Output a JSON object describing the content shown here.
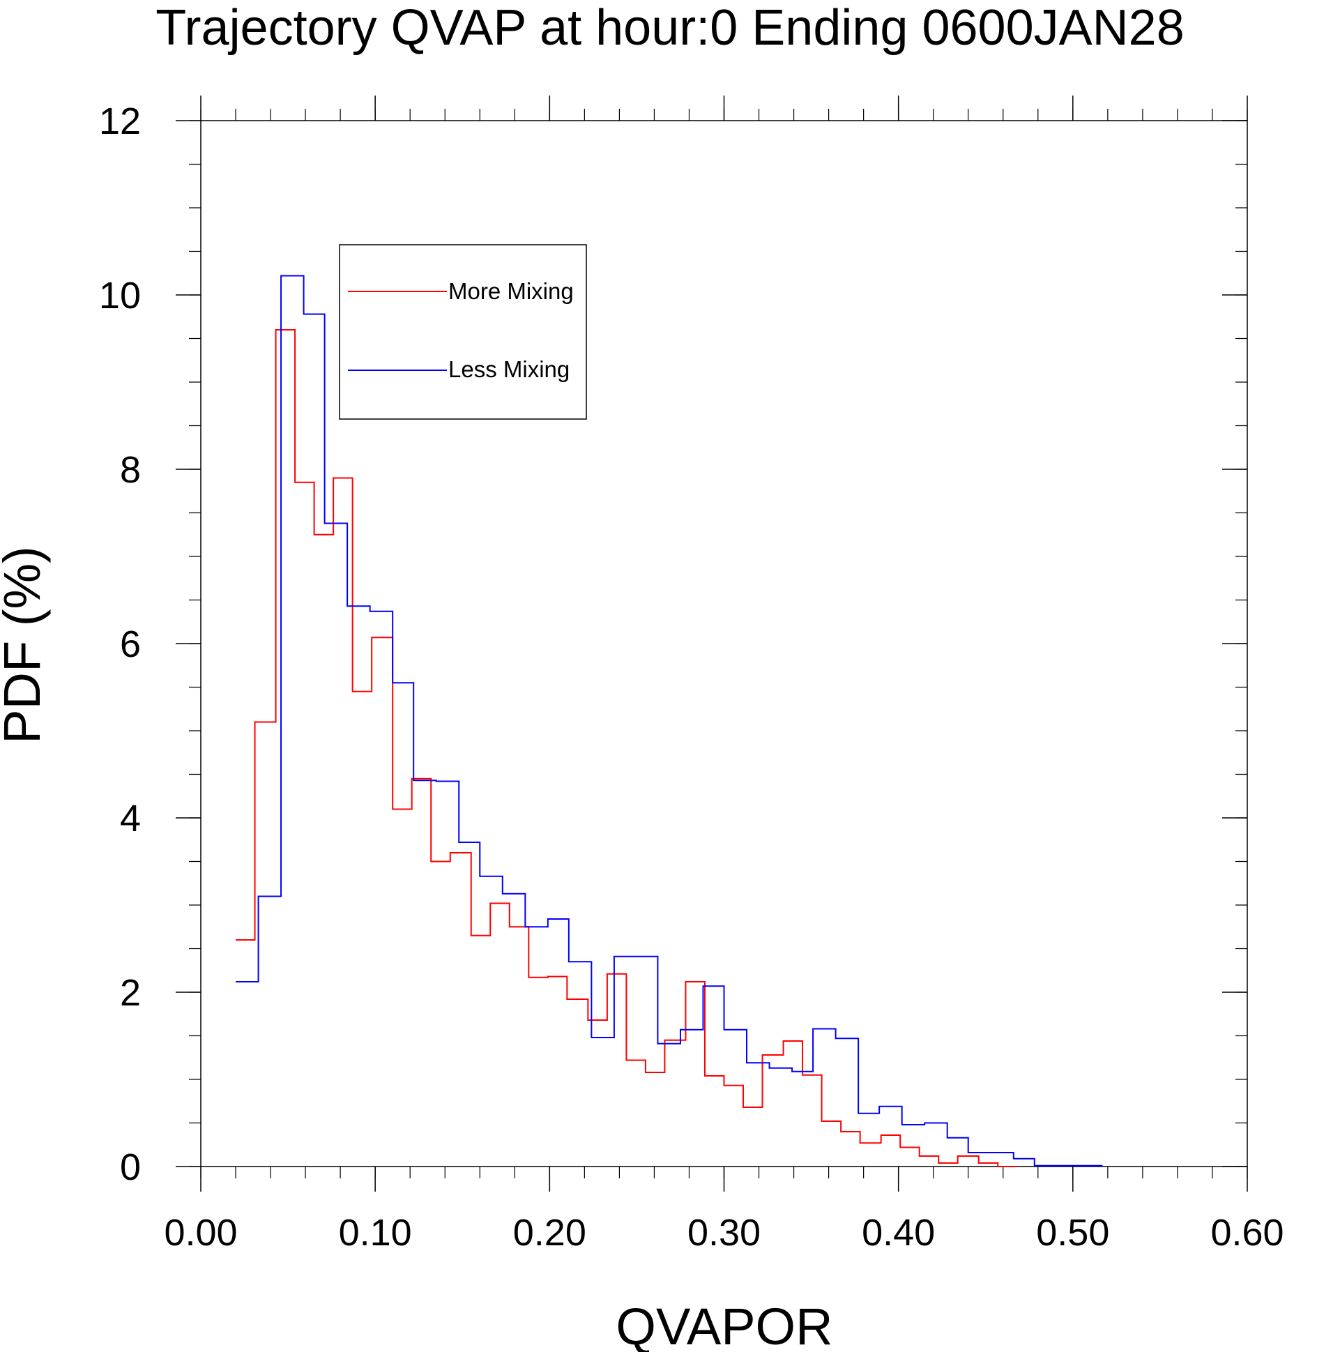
{
  "chart_data": {
    "type": "line",
    "step": true,
    "title": "Trajectory QVAP at hour:0 Ending 0600JAN28",
    "xlabel": "QVAPOR",
    "ylabel": "PDF (%)",
    "xlim": [
      0.0,
      0.6
    ],
    "ylim": [
      0,
      12
    ],
    "xticks": [
      "0.00",
      "0.10",
      "0.20",
      "0.30",
      "0.40",
      "0.50",
      "0.60"
    ],
    "yticks": [
      "0",
      "2",
      "4",
      "6",
      "8",
      "10",
      "12"
    ],
    "grid": false,
    "legend_position": "upper-left",
    "series": [
      {
        "name": "More Mixing",
        "color": "#ff0000",
        "x": [
          0.02,
          0.031,
          0.043,
          0.054,
          0.065,
          0.076,
          0.087,
          0.098,
          0.11,
          0.121,
          0.132,
          0.143,
          0.155,
          0.166,
          0.177,
          0.188,
          0.199,
          0.21,
          0.222,
          0.233,
          0.244,
          0.255,
          0.266,
          0.278,
          0.289,
          0.3,
          0.311,
          0.322,
          0.334,
          0.345,
          0.356,
          0.367,
          0.378,
          0.39,
          0.401,
          0.412,
          0.423,
          0.434,
          0.446,
          0.457
        ],
        "y": [
          2.6,
          5.1,
          9.6,
          7.85,
          7.25,
          7.9,
          5.45,
          6.07,
          4.1,
          4.45,
          3.5,
          3.6,
          2.65,
          3.02,
          2.75,
          2.17,
          2.18,
          1.92,
          1.68,
          2.21,
          1.22,
          1.08,
          1.45,
          2.12,
          1.04,
          0.93,
          0.68,
          1.28,
          1.44,
          1.05,
          0.52,
          0.4,
          0.27,
          0.36,
          0.22,
          0.12,
          0.04,
          0.12,
          0.04,
          0.0
        ]
      },
      {
        "name": "Less Mixing",
        "color": "#0000ff",
        "x": [
          0.02,
          0.033,
          0.046,
          0.059,
          0.071,
          0.084,
          0.097,
          0.11,
          0.122,
          0.135,
          0.148,
          0.16,
          0.173,
          0.186,
          0.199,
          0.211,
          0.224,
          0.237,
          0.25,
          0.262,
          0.275,
          0.288,
          0.3,
          0.313,
          0.326,
          0.339,
          0.351,
          0.364,
          0.377,
          0.389,
          0.402,
          0.415,
          0.428,
          0.44,
          0.453,
          0.466,
          0.478,
          0.491,
          0.504
        ],
        "y": [
          2.12,
          3.1,
          10.22,
          9.78,
          7.38,
          6.43,
          6.37,
          5.55,
          4.43,
          4.42,
          3.72,
          3.33,
          3.13,
          2.75,
          2.84,
          2.35,
          1.48,
          2.41,
          2.41,
          1.41,
          1.57,
          2.07,
          1.57,
          1.19,
          1.13,
          1.09,
          1.58,
          1.47,
          0.61,
          0.69,
          0.48,
          0.5,
          0.33,
          0.16,
          0.16,
          0.09,
          0.01,
          0.01,
          0.01
        ]
      }
    ]
  }
}
